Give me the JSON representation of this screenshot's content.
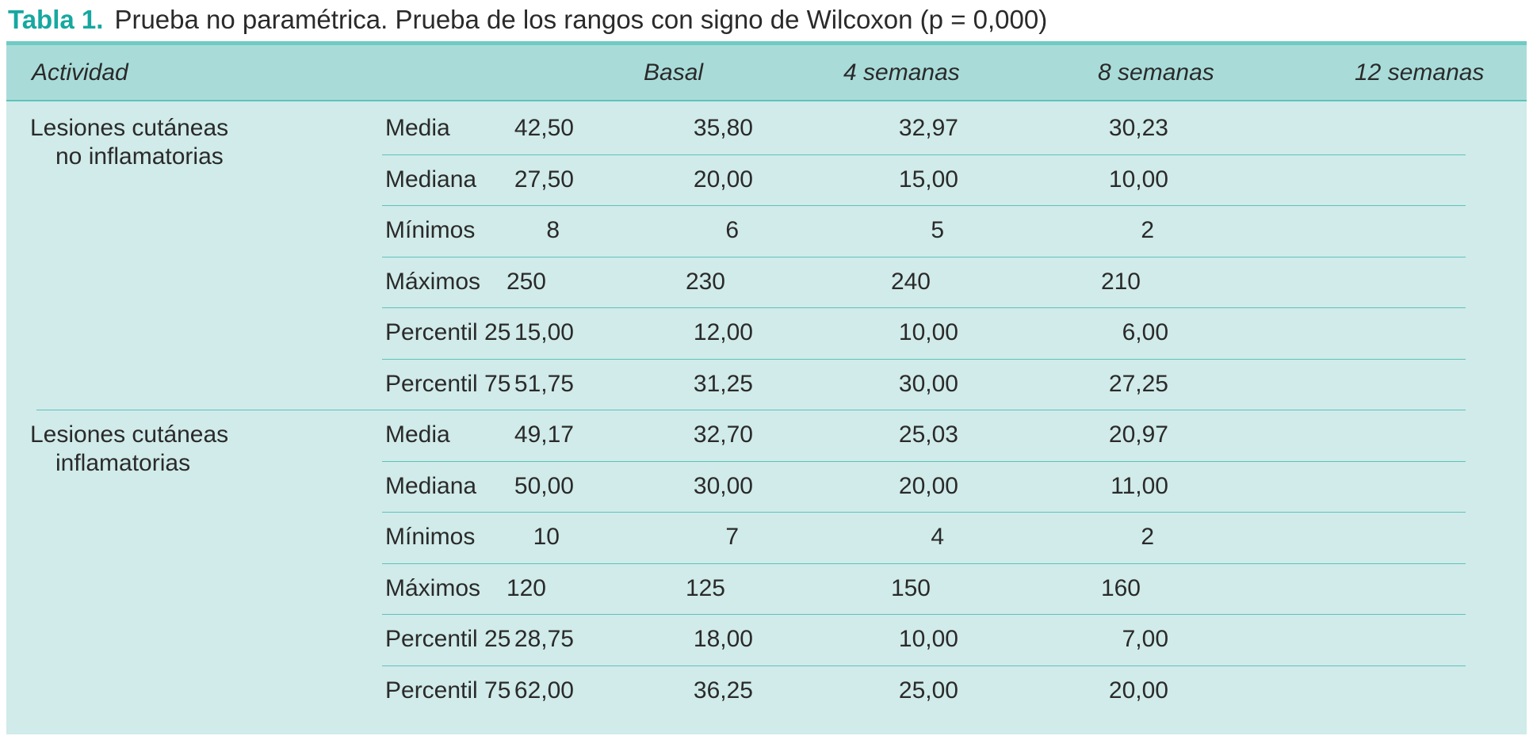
{
  "caption": {
    "label": "Tabla 1.",
    "text": "Prueba no paramétrica. Prueba de los rangos con signo de Wilcoxon (p = 0,000)"
  },
  "header": {
    "activity": "Actividad",
    "columns": [
      "Basal",
      "4 semanas",
      "8 semanas",
      "12 semanas"
    ]
  },
  "groups": [
    {
      "name_line1": "Lesiones cutáneas",
      "name_line2": "no inflamatorias",
      "rows": [
        {
          "stat": "Media",
          "values": [
            "42,50",
            "35,80",
            "32,97",
            "30,23"
          ]
        },
        {
          "stat": "Mediana",
          "values": [
            "27,50",
            "20,00",
            "15,00",
            "10,00"
          ]
        },
        {
          "stat": "Mínimos",
          "values": [
            "8",
            "6",
            "5",
            "2"
          ]
        },
        {
          "stat": "Máximos",
          "values": [
            "250",
            "230",
            "240",
            "210"
          ]
        },
        {
          "stat": "Percentil 25",
          "values": [
            "15,00",
            "12,00",
            "10,00",
            "6,00"
          ]
        },
        {
          "stat": "Percentil 75",
          "values": [
            "51,75",
            "31,25",
            "30,00",
            "27,25"
          ]
        }
      ]
    },
    {
      "name_line1": "Lesiones cutáneas",
      "name_line2": "inflamatorias",
      "rows": [
        {
          "stat": "Media",
          "values": [
            "49,17",
            "32,70",
            "25,03",
            "20,97"
          ]
        },
        {
          "stat": "Mediana",
          "values": [
            "50,00",
            "30,00",
            "20,00",
            "11,00"
          ]
        },
        {
          "stat": "Mínimos",
          "values": [
            "10",
            "7",
            "4",
            "2"
          ]
        },
        {
          "stat": "Máximos",
          "values": [
            "120",
            "125",
            "150",
            "160"
          ]
        },
        {
          "stat": "Percentil 25",
          "values": [
            "28,75",
            "18,00",
            "10,00",
            "7,00"
          ]
        },
        {
          "stat": "Percentil 75",
          "values": [
            "62,00",
            "36,25",
            "25,00",
            "20,00"
          ]
        }
      ]
    }
  ],
  "colors": {
    "caption_label": "#16a8a0",
    "header_band": "#a9dcd9",
    "table_body": "#d0ebe9",
    "rule": "#5fc2bb"
  }
}
